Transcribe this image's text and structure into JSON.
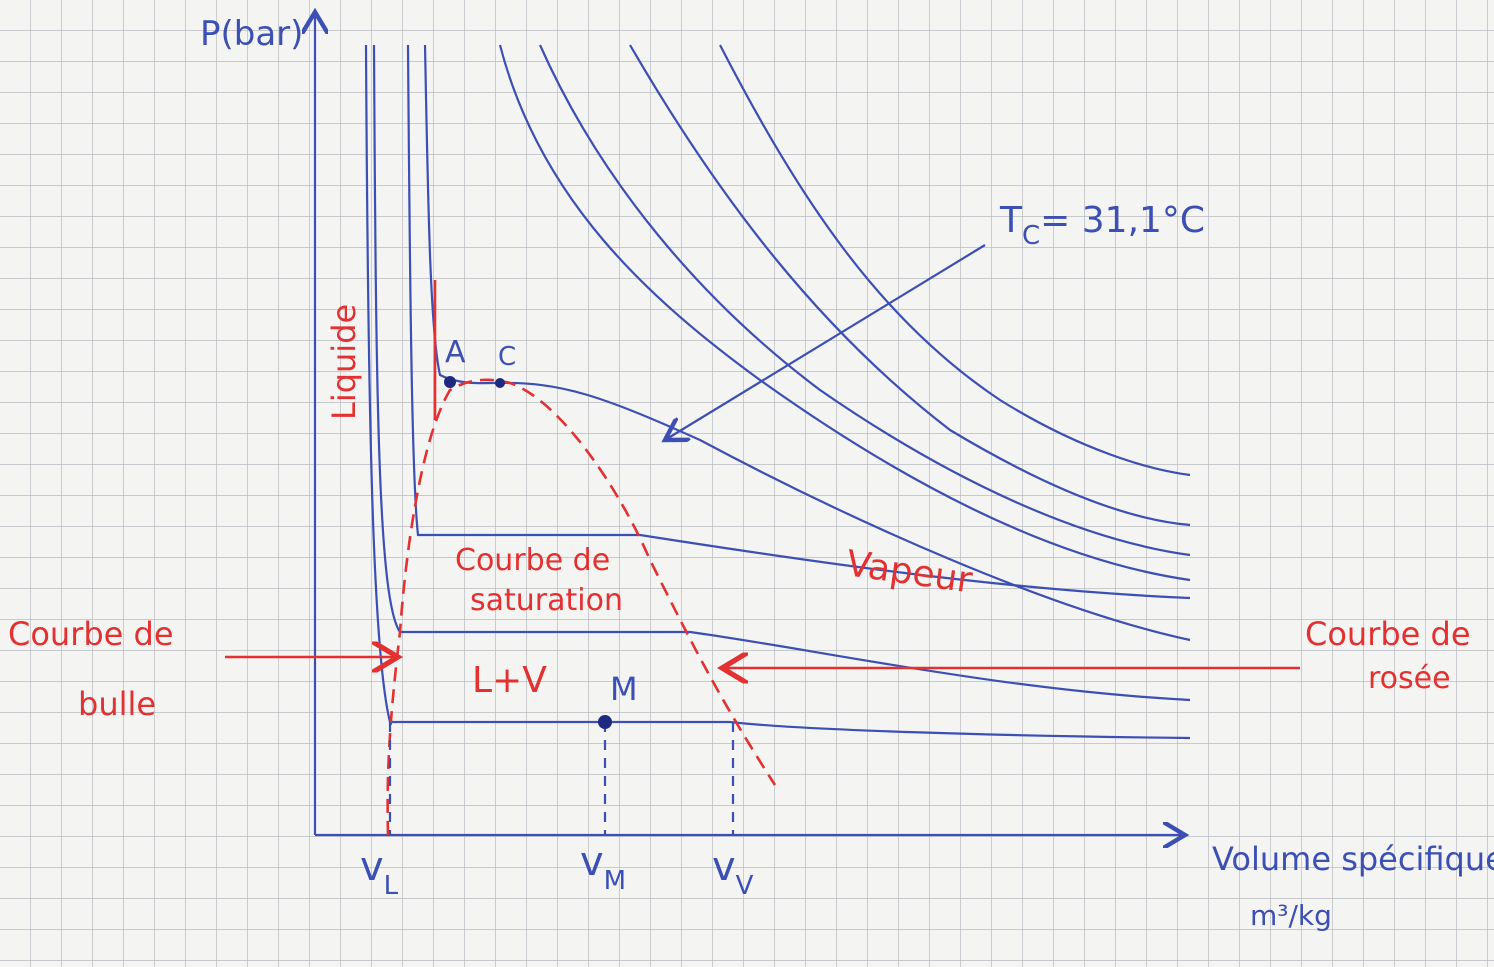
{
  "axes": {
    "y_label": "P(bar)",
    "x_label": "Volume spécifique",
    "x_unit": "m³/kg"
  },
  "critical_temperature": {
    "symbol": "T",
    "subscript": "C",
    "text": "= 31,1°C"
  },
  "regions": {
    "liquid": "Liquide",
    "vapor": "Vapeur",
    "two_phase": "L+V"
  },
  "curves": {
    "saturation": [
      "Courbe de",
      "saturation"
    ],
    "bubble": [
      "Courbe de",
      "bulle"
    ],
    "dew": [
      "Courbe de",
      "rosée"
    ]
  },
  "points": {
    "A": "A",
    "C": "C",
    "M": "M"
  },
  "volumes": [
    {
      "symbol": "v",
      "subscript": "L"
    },
    {
      "symbol": "v",
      "subscript": "M"
    },
    {
      "symbol": "v",
      "subscript": "V"
    }
  ]
}
